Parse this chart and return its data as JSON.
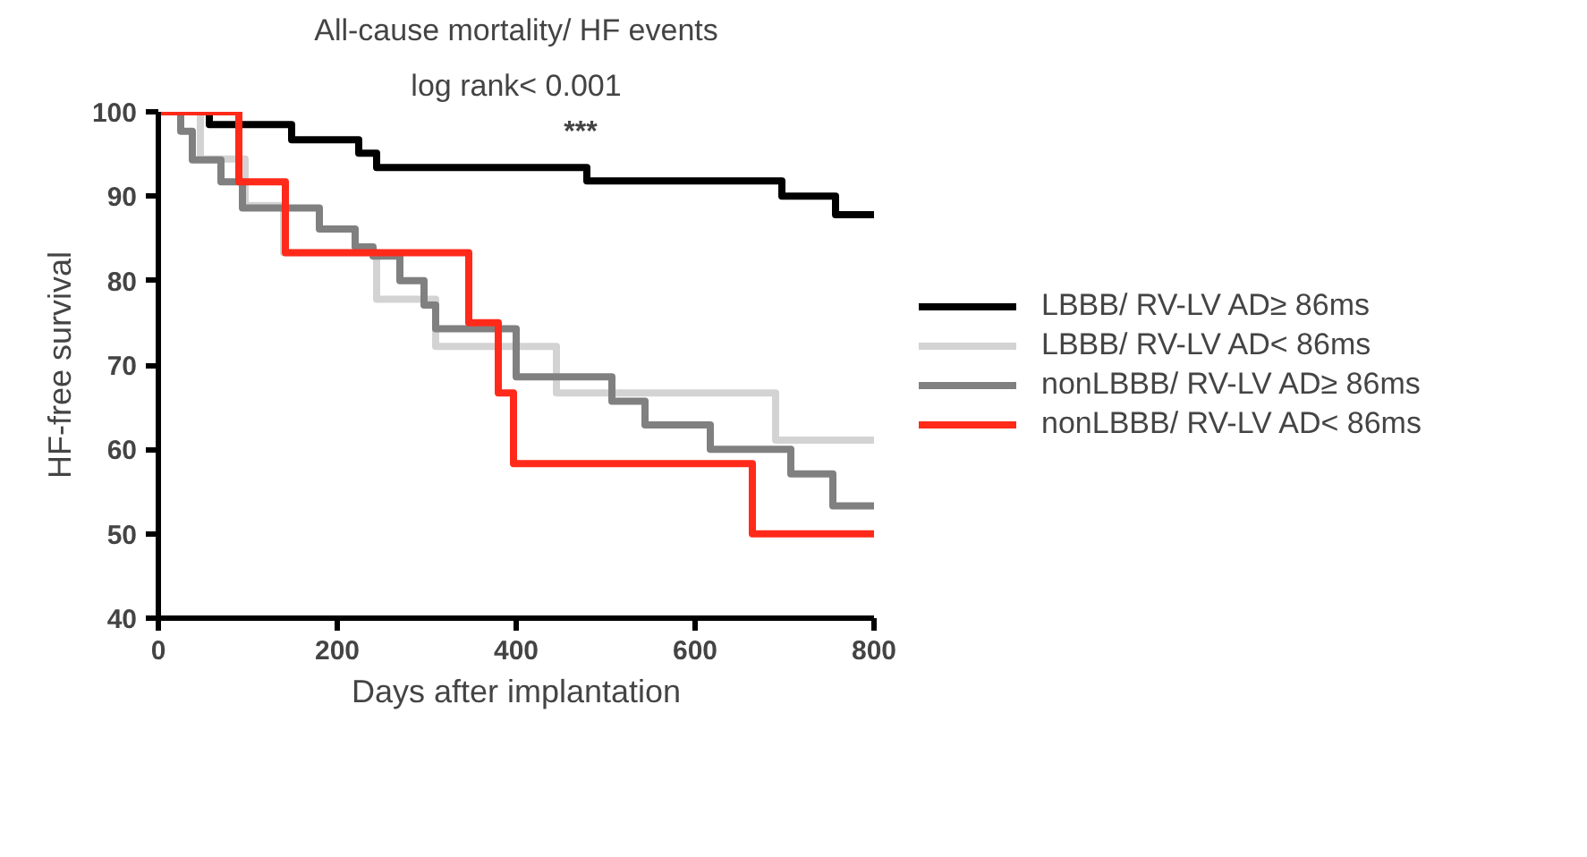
{
  "chart_data": {
    "type": "step",
    "title": "All-cause mortality/ HF events",
    "subtitle": "log rank< 0.001",
    "xlabel": "Days after implantation",
    "ylabel": "HF-free survival",
    "xlim": [
      0,
      800
    ],
    "ylim": [
      40,
      100
    ],
    "xticks": [
      0,
      200,
      400,
      600,
      800
    ],
    "yticks": [
      40,
      50,
      60,
      70,
      80,
      90,
      100
    ],
    "grid": false,
    "legend": "right",
    "line_style": "solid",
    "annotations": [
      "***"
    ],
    "series": [
      {
        "name": "LBBB/ RV-LV AD≥ 86ms",
        "color": "#000000",
        "x": [
          0,
          57,
          149,
          224,
          244,
          479,
          697,
          757,
          800
        ],
        "values": [
          100,
          98.5,
          96.7,
          95.1,
          93.4,
          91.8,
          90.0,
          87.8,
          87.8
        ]
      },
      {
        "name": "LBBB/ RV-LV AD< 86ms",
        "color": "#d3d3d3",
        "x": [
          0,
          47,
          97,
          140,
          244,
          310,
          445,
          690,
          800
        ],
        "values": [
          100,
          94.4,
          88.9,
          83.3,
          77.8,
          72.2,
          66.7,
          61.1,
          61.1
        ]
      },
      {
        "name": "nonLBBB/ RV-LV AD≥ 86ms",
        "color": "#808080",
        "x": [
          0,
          25,
          38,
          70,
          94,
          180,
          220,
          240,
          270,
          297,
          310,
          400,
          507,
          544,
          617,
          707,
          754,
          800
        ],
        "values": [
          100,
          97.7,
          94.3,
          91.7,
          88.6,
          86.1,
          84.0,
          82.9,
          80.0,
          77.1,
          74.3,
          68.6,
          65.7,
          62.9,
          60.0,
          57.1,
          53.3,
          53.3
        ]
      },
      {
        "name": "nonLBBB/ RV-LV AD< 86ms",
        "color": "#ff2a1a",
        "x": [
          0,
          90,
          142,
          347,
          380,
          397,
          664,
          800
        ],
        "values": [
          100,
          91.7,
          83.3,
          75.0,
          66.7,
          58.3,
          50.0,
          50.0
        ]
      }
    ]
  }
}
